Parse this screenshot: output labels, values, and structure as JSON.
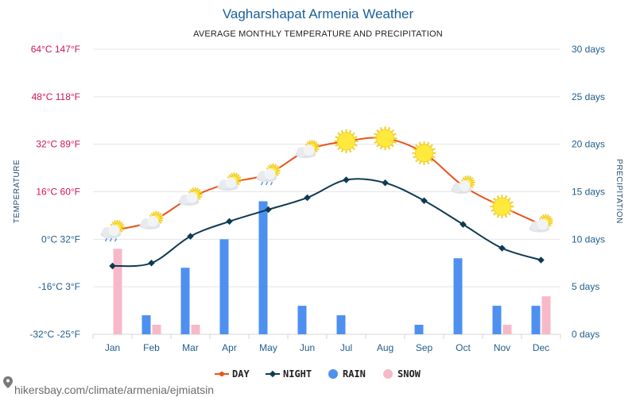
{
  "title": "Vagharshapat Armenia Weather",
  "subtitle": "AVERAGE MONTHLY TEMPERATURE AND PRECIPITATION",
  "footer": "hikersbay.com/climate/armenia/ejmiatsin",
  "chart_data": {
    "type": "line",
    "categories": [
      "Jan",
      "Feb",
      "Mar",
      "Apr",
      "May",
      "Jun",
      "Jul",
      "Aug",
      "Sep",
      "Oct",
      "Nov",
      "Dec"
    ],
    "left_axis": {
      "label": "TEMPERATURE",
      "range": [
        -32,
        64
      ],
      "ticks": [
        "-32°C -25°F",
        "-16°C 3°F",
        "0°C 32°F",
        "16°C 60°F",
        "32°C 89°F",
        "48°C 118°F",
        "64°C 147°F"
      ]
    },
    "right_axis": {
      "label": "PRECIPITATION",
      "range": [
        0,
        30
      ],
      "ticks": [
        "0 days",
        "5 days",
        "10 days",
        "15 days",
        "20 days",
        "25 days",
        "30 days"
      ]
    },
    "series": [
      {
        "name": "DAY",
        "kind": "line",
        "axis": "left",
        "color": "#e8541c",
        "values": [
          3,
          6,
          14,
          19,
          22,
          30,
          33,
          34,
          29,
          18,
          11,
          5
        ]
      },
      {
        "name": "NIGHT",
        "kind": "line",
        "axis": "left",
        "color": "#0e3a52",
        "values": [
          -9,
          -8,
          1,
          6,
          10,
          14,
          20,
          19,
          13,
          5,
          -3,
          -7
        ]
      },
      {
        "name": "RAIN",
        "kind": "bar",
        "axis": "right",
        "color": "#4d90f0",
        "values": [
          0,
          2,
          7,
          10,
          14,
          3,
          2,
          0,
          1,
          8,
          3,
          3
        ]
      },
      {
        "name": "SNOW",
        "kind": "bar",
        "axis": "right",
        "color": "#f7b9c9",
        "values": [
          9,
          1,
          1,
          0,
          0,
          0,
          0,
          0,
          0,
          0,
          1,
          4
        ]
      }
    ],
    "weather_icons": [
      "cloud-sun-rain-icon",
      "cloud-sun-icon",
      "cloud-sun-icon",
      "cloud-sun-icon",
      "cloud-sun-rain-icon",
      "cloud-sun-icon",
      "sun-icon",
      "sun-icon",
      "sun-icon",
      "cloud-sun-icon",
      "sun-icon",
      "cloud-sun-icon"
    ],
    "legend": [
      "DAY",
      "NIGHT",
      "RAIN",
      "SNOW"
    ],
    "legend_placement": "bottom",
    "grid": true
  }
}
